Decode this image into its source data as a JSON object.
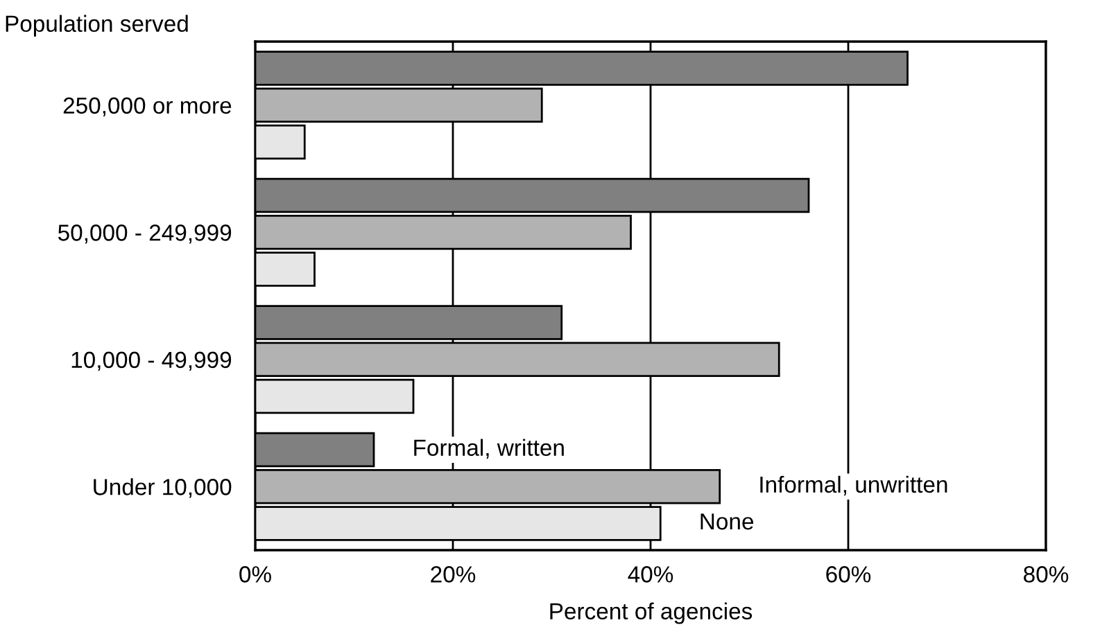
{
  "chart_data": {
    "type": "bar",
    "orientation": "horizontal",
    "ylabel": "Population served",
    "xlabel": "Percent of agencies",
    "categories": [
      "250,000 or more",
      "50,000 - 249,999",
      "10,000 - 49,999",
      "Under 10,000"
    ],
    "series": [
      {
        "name": "Formal, written",
        "color": "#808080",
        "values": [
          66,
          56,
          31,
          12
        ]
      },
      {
        "name": "Informal, unwritten",
        "color": "#b2b2b2",
        "values": [
          29,
          38,
          53,
          47
        ]
      },
      {
        "name": "None",
        "color": "#e6e6e6",
        "values": [
          5,
          6,
          16,
          41
        ]
      }
    ],
    "xlim": [
      0,
      80
    ],
    "xticks": [
      {
        "value": 0,
        "label": "0%"
      },
      {
        "value": 20,
        "label": "20%"
      },
      {
        "value": 40,
        "label": "40%"
      },
      {
        "value": 60,
        "label": "60%"
      },
      {
        "value": 80,
        "label": "80%"
      }
    ],
    "grid": "x",
    "legend": false
  }
}
